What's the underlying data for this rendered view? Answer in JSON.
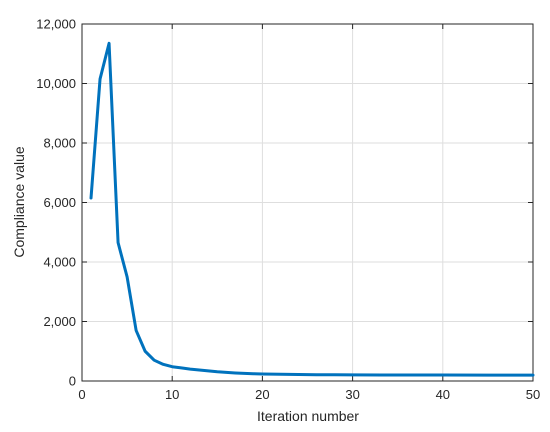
{
  "chart_data": {
    "type": "line",
    "title": "",
    "xlabel": "Iteration number",
    "ylabel": "Compliance value",
    "xlim": [
      0,
      50
    ],
    "ylim": [
      0,
      12000
    ],
    "xticks": [
      0,
      10,
      20,
      30,
      40,
      50
    ],
    "xtick_labels": [
      "0",
      "10",
      "20",
      "30",
      "40",
      "50"
    ],
    "yticks": [
      0,
      2000,
      4000,
      6000,
      8000,
      10000,
      12000
    ],
    "ytick_labels": [
      "0",
      "2,000",
      "4,000",
      "6,000",
      "8,000",
      "10,000",
      "12,000"
    ],
    "grid": true,
    "box": true,
    "series": [
      {
        "color": "#0072bd",
        "x": [
          1,
          2,
          3,
          4,
          5,
          6,
          7,
          8,
          9,
          10,
          11,
          12,
          13,
          14,
          15,
          16,
          17,
          18,
          19,
          20,
          22,
          24,
          26,
          28,
          30,
          35,
          40,
          45,
          50
        ],
        "y": [
          6150,
          10150,
          11350,
          4650,
          3500,
          1700,
          1000,
          700,
          560,
          480,
          440,
          400,
          370,
          340,
          310,
          290,
          270,
          255,
          245,
          235,
          225,
          218,
          212,
          208,
          205,
          202,
          200,
          199,
          198
        ]
      }
    ]
  }
}
